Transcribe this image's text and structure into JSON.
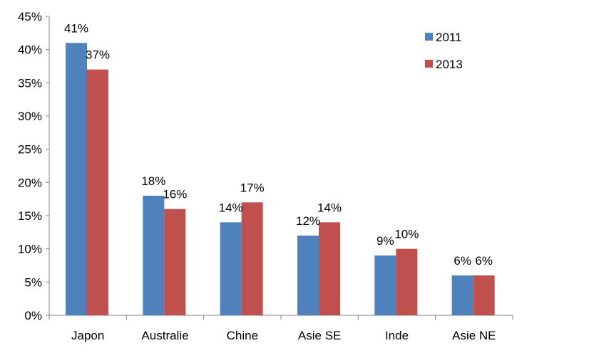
{
  "chart_data": {
    "type": "bar",
    "categories": [
      "Japon",
      "Australie",
      "Chine",
      "Asie SE",
      "Inde",
      "Asie NE"
    ],
    "series": [
      {
        "name": "2011",
        "values": [
          41,
          18,
          14,
          12,
          9,
          6
        ],
        "labels": [
          "41%",
          "18%",
          "14%",
          "12%",
          "9%",
          "6%"
        ],
        "color": "#4f81bd"
      },
      {
        "name": "2013",
        "values": [
          37,
          16,
          17,
          14,
          10,
          6
        ],
        "labels": [
          "37%",
          "16%",
          "17%",
          "14%",
          "10%",
          "6%"
        ],
        "color": "#c0504d"
      }
    ],
    "y_ticks": [
      "0%",
      "5%",
      "10%",
      "15%",
      "20%",
      "25%",
      "30%",
      "35%",
      "40%",
      "45%"
    ],
    "ylim": [
      0,
      45
    ],
    "grid": false,
    "legend_position": "top-right"
  }
}
